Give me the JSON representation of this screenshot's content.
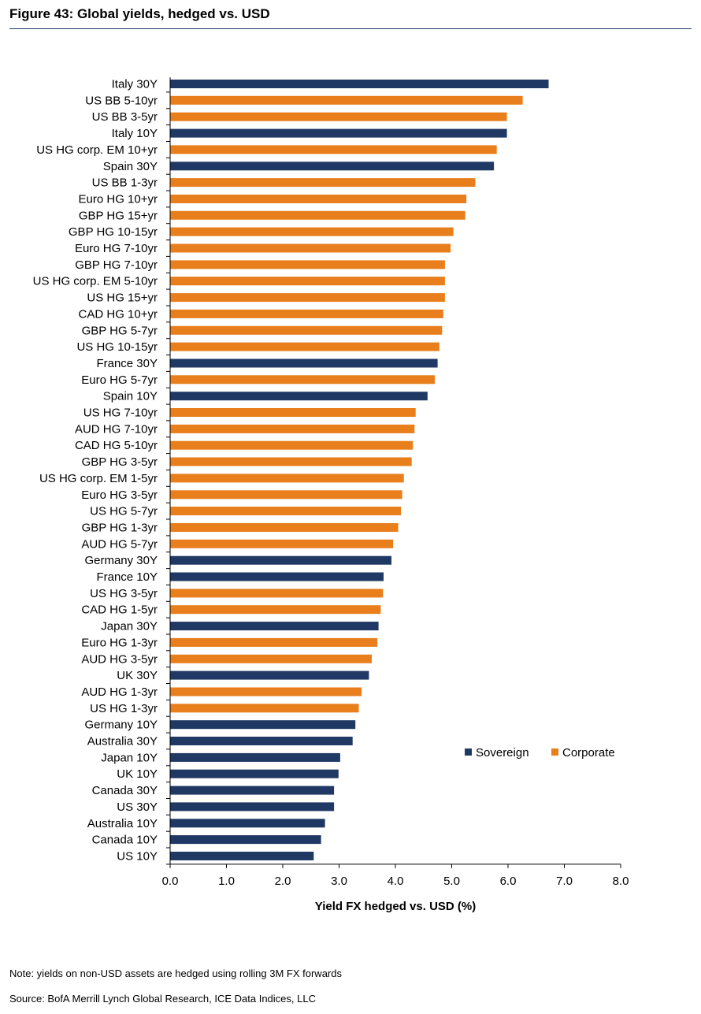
{
  "figure": {
    "title": "Figure 43: Global yields, hedged vs. USD",
    "note": "Note: yields on non-USD assets are hedged using rolling 3M FX forwards",
    "source": "Source: BofA Merrill Lynch Global Research, ICE Data Indices, LLC"
  },
  "chart_data": {
    "type": "bar",
    "orientation": "horizontal",
    "title": "",
    "xlabel": "Yield FX hedged vs. USD (%)",
    "ylabel": "",
    "xlim": [
      0,
      8
    ],
    "x_ticks": [
      "0.0",
      "1.0",
      "2.0",
      "3.0",
      "4.0",
      "5.0",
      "6.0",
      "7.0",
      "8.0"
    ],
    "grid": false,
    "legend_position": "right",
    "legend": [
      {
        "name": "Sovereign",
        "color": "#1f3864"
      },
      {
        "name": "Corporate",
        "color": "#e87e1c"
      }
    ],
    "categories": [
      "Italy 30Y",
      "US BB 5-10yr",
      "US BB 3-5yr",
      "Italy 10Y",
      "US HG corp. EM 10+yr",
      "Spain 30Y",
      "US BB 1-3yr",
      "Euro HG 10+yr",
      "GBP HG 15+yr",
      "GBP HG 10-15yr",
      "Euro HG 7-10yr",
      "GBP HG 7-10yr",
      "US HG corp. EM 5-10yr",
      "US HG 15+yr",
      "CAD HG 10+yr",
      "GBP HG 5-7yr",
      "US HG 10-15yr",
      "France 30Y",
      "Euro HG 5-7yr",
      "Spain 10Y",
      "US HG 7-10yr",
      "AUD HG 7-10yr",
      "CAD HG 5-10yr",
      "GBP HG 3-5yr",
      "US HG corp. EM 1-5yr",
      "Euro HG 3-5yr",
      "US HG 5-7yr",
      "GBP HG 1-3yr",
      "AUD HG 5-7yr",
      "Germany 30Y",
      "France 10Y",
      "US HG 3-5yr",
      "CAD HG 1-5yr",
      "Japan 30Y",
      "Euro HG 1-3yr",
      "AUD HG 3-5yr",
      "UK 30Y",
      "AUD HG 1-3yr",
      "US HG 1-3yr",
      "Germany 10Y",
      "Australia 30Y",
      "Japan 10Y",
      "UK 10Y",
      "Canada 30Y",
      "US 30Y",
      "Australia 10Y",
      "Canada 10Y",
      "US 10Y"
    ],
    "values": [
      6.72,
      6.26,
      5.98,
      5.98,
      5.8,
      5.75,
      5.42,
      5.26,
      5.24,
      5.03,
      4.98,
      4.88,
      4.88,
      4.88,
      4.85,
      4.83,
      4.78,
      4.75,
      4.7,
      4.57,
      4.36,
      4.34,
      4.31,
      4.29,
      4.15,
      4.12,
      4.1,
      4.05,
      3.96,
      3.93,
      3.79,
      3.78,
      3.74,
      3.7,
      3.68,
      3.58,
      3.53,
      3.4,
      3.35,
      3.29,
      3.24,
      3.02,
      2.99,
      2.91,
      2.91,
      2.75,
      2.68,
      2.55
    ],
    "series_type": [
      "Sovereign",
      "Corporate",
      "Corporate",
      "Sovereign",
      "Corporate",
      "Sovereign",
      "Corporate",
      "Corporate",
      "Corporate",
      "Corporate",
      "Corporate",
      "Corporate",
      "Corporate",
      "Corporate",
      "Corporate",
      "Corporate",
      "Corporate",
      "Sovereign",
      "Corporate",
      "Sovereign",
      "Corporate",
      "Corporate",
      "Corporate",
      "Corporate",
      "Corporate",
      "Corporate",
      "Corporate",
      "Corporate",
      "Corporate",
      "Sovereign",
      "Sovereign",
      "Corporate",
      "Corporate",
      "Sovereign",
      "Corporate",
      "Corporate",
      "Sovereign",
      "Corporate",
      "Corporate",
      "Sovereign",
      "Sovereign",
      "Sovereign",
      "Sovereign",
      "Sovereign",
      "Sovereign",
      "Sovereign",
      "Sovereign",
      "Sovereign"
    ]
  }
}
